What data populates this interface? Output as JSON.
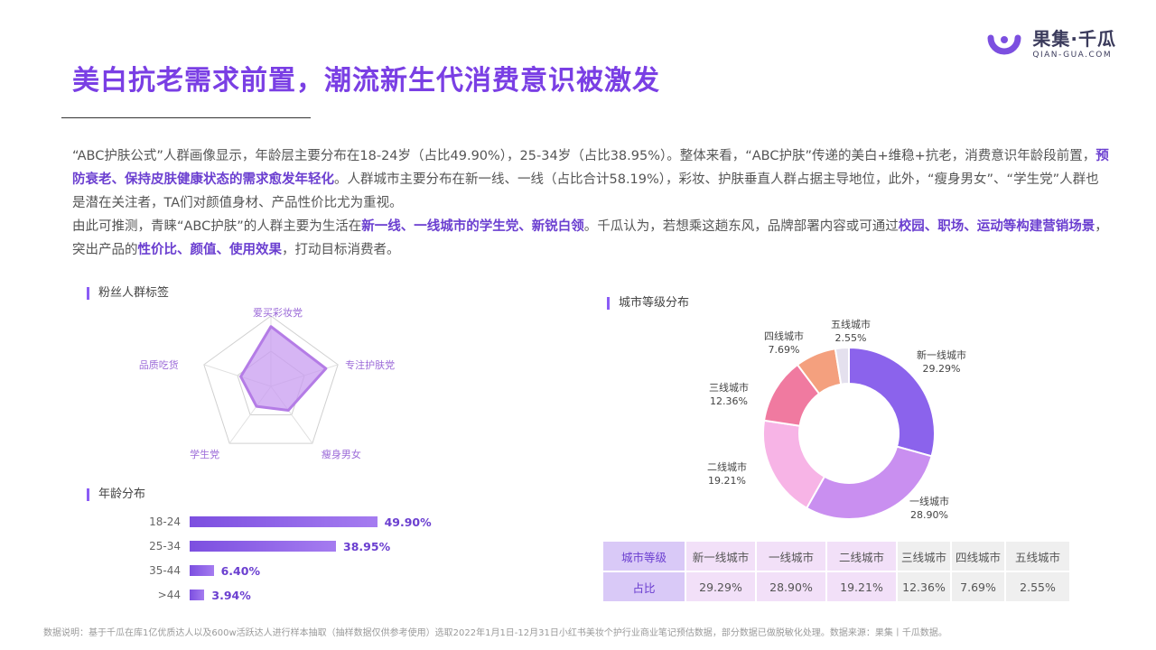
{
  "logo": {
    "cn": "果集·千瓜",
    "en": "QIAN-GUA.COM"
  },
  "title": "美白抗老需求前置，潮流新生代消费意识被激发",
  "intro": {
    "p1_a": "“ABC护肤公式”人群画像显示，年龄层主要分布在18-24岁（占比49.90%），25-34岁（占比38.95%）。整体来看，“ABC护肤”传递的美白+维稳+抗老，消费意识年龄段前置，",
    "p1_hl": "预防衰老、保持皮肤健康状态的需求愈发年轻化",
    "p1_b": "。人群城市主要分布在新一线、一线（占比合计58.19%），彩妆、护肤垂直人群占据主导地位，此外，“瘦身男女”、“学生党”人群也是潜在关注者，TA们对颜值身材、产品性价比尤为重视。",
    "p2_a": "由此可推测，青睐“ABC护肤”的人群主要为生活在",
    "p2_hl1": "新一线、一线城市的学生党、新锐白领",
    "p2_b": "。千瓜认为，若想乘这趟东风，品牌部署内容或可通过",
    "p2_hl2": "校园、职场、运动等构建营销场景",
    "p2_c": "，突出产品的",
    "p2_hl3": "性价比、颜值、使用效果",
    "p2_d": "，打动目标消费者。"
  },
  "sections": {
    "fans": "粉丝人群标签",
    "age": "年龄分布",
    "city": "城市等级分布"
  },
  "chart_data": [
    {
      "type": "radar",
      "title": "粉丝人群标签",
      "categories": [
        "爱买彩妆党",
        "专注护肤党",
        "瘦身男女",
        "学生党",
        "品质吃货"
      ],
      "values": [
        0.85,
        0.82,
        0.42,
        0.35,
        0.45
      ],
      "color": "#c89cf0"
    },
    {
      "type": "bar",
      "orientation": "horizontal",
      "title": "年龄分布",
      "categories": [
        "18-24",
        "25-34",
        "35-44",
        ">44"
      ],
      "values": [
        49.9,
        38.95,
        6.4,
        3.94
      ],
      "labels": [
        "49.90%",
        "38.95%",
        "6.40%",
        "3.94%"
      ],
      "color": "#7c4fe0"
    },
    {
      "type": "pie",
      "donut": true,
      "title": "城市等级分布",
      "categories": [
        "新一线城市",
        "一线城市",
        "二线城市",
        "三线城市",
        "四线城市",
        "五线城市"
      ],
      "values": [
        29.29,
        28.9,
        19.21,
        12.36,
        7.69,
        2.55
      ],
      "labels": [
        "29.29%",
        "28.90%",
        "19.21%",
        "12.36%",
        "7.69%",
        "2.55%"
      ],
      "colors": [
        "#8b63ec",
        "#c98ff0",
        "#f7b4e6",
        "#f07aa0",
        "#f4a07e",
        "#e4e0ee"
      ]
    }
  ],
  "table": {
    "header": "城市等级",
    "row_label": "占比",
    "cols": [
      "新一线城市",
      "一线城市",
      "二线城市",
      "三线城市",
      "四线城市",
      "五线城市"
    ],
    "values": [
      "29.29%",
      "28.90%",
      "19.21%",
      "12.36%",
      "7.69%",
      "2.55%"
    ]
  },
  "footnote": "数据说明：基于千瓜在库1亿优质达人以及600w活跃达人进行样本抽取（抽样数据仅供参考使用）选取2022年1月1日-12月31日小红书美妆个护行业商业笔记预估数据，部分数据已做脱敏化处理。数据来源：果集丨千瓜数据。"
}
